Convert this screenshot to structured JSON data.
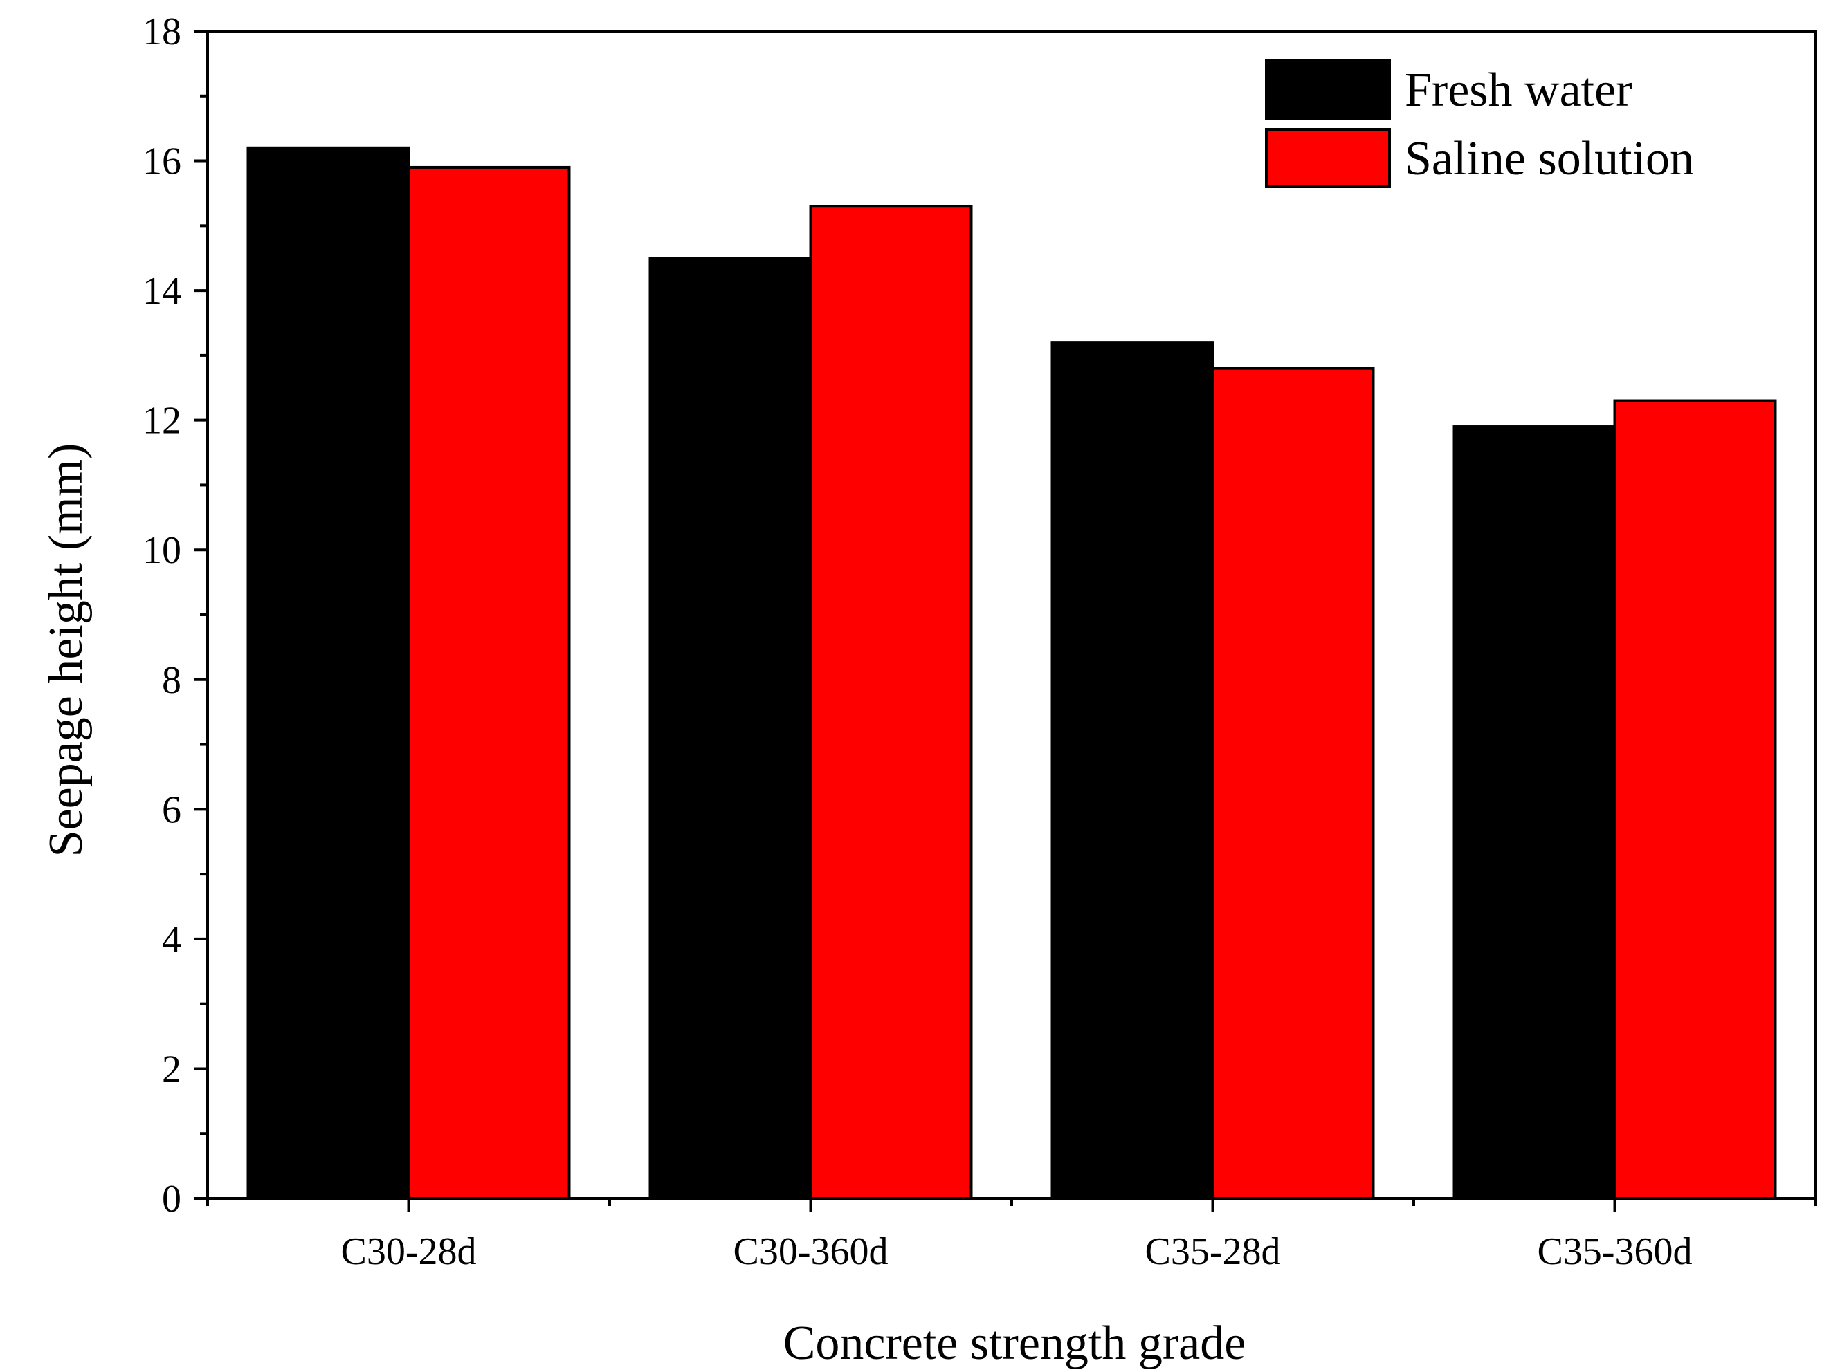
{
  "chart_data": {
    "type": "bar",
    "title": "",
    "xlabel": "Concrete strength grade",
    "ylabel": "Seepage height (mm)",
    "categories": [
      "C30-28d",
      "C30-360d",
      "C35-28d",
      "C35-360d"
    ],
    "series": [
      {
        "name": "Fresh water",
        "color": "#000000",
        "values": [
          16.2,
          14.5,
          13.2,
          11.9
        ]
      },
      {
        "name": "Saline solution",
        "color": "#ff0000",
        "values": [
          15.9,
          15.3,
          12.8,
          12.3
        ]
      }
    ],
    "ylim": [
      0,
      18
    ],
    "yticks": [
      "0",
      "2",
      "4",
      "6",
      "8",
      "10",
      "12",
      "14",
      "16",
      "18"
    ],
    "grid": false,
    "legend_position": "top-right"
  }
}
